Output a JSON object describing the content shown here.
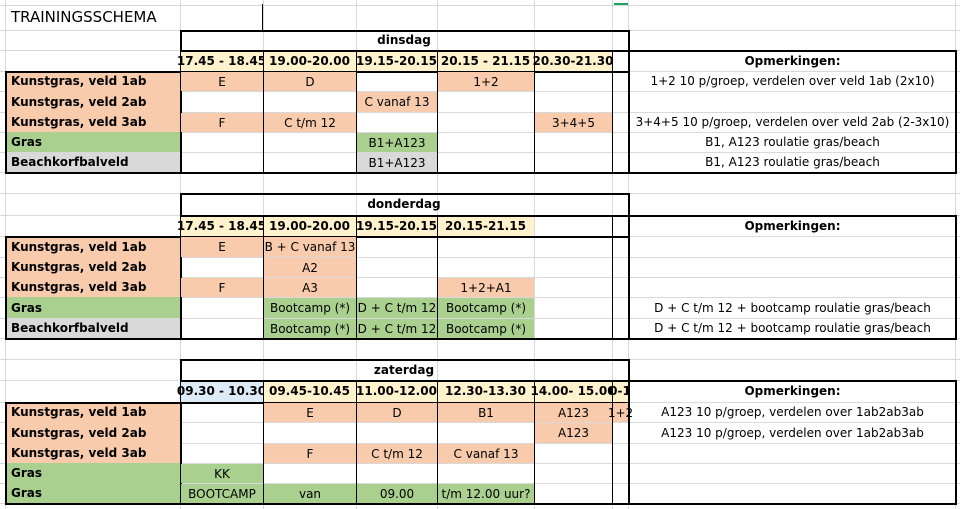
{
  "title": "TRAININGSSCHEMA",
  "colors": {
    "salmon": "#f8cbad",
    "green": "#a9d08e",
    "grey": "#d9d9d9",
    "cream": "#fff2cc",
    "slot_blue": "#ddebf7",
    "grid": "#d9d9d9",
    "selection": "#21a366"
  },
  "sections": [
    {
      "day": "dinsdag",
      "remarks_header": "Opmerkingen:",
      "times": [
        "17.45 - 18.45",
        "19.00-20.00",
        "19.15-20.15",
        "20.15 - 21.15",
        "20.30-21.30"
      ],
      "rows": [
        {
          "label": "Kunstgras, veld 1ab",
          "color": "salmon",
          "cells": [
            "E",
            "D",
            "",
            "1+2",
            ""
          ],
          "remark": "1+2 10 p/groep, verdelen over veld 1ab (2x10)"
        },
        {
          "label": "Kunstgras, veld 2ab",
          "color": "salmon",
          "cells": [
            "",
            "",
            "C vanaf 13",
            "",
            ""
          ],
          "remark": ""
        },
        {
          "label": "Kunstgras, veld 3ab",
          "color": "salmon",
          "cells": [
            "F",
            "C t/m 12",
            "",
            "",
            "3+4+5"
          ],
          "remark": "3+4+5 10 p/groep, verdelen over veld 2ab (2-3x10)"
        },
        {
          "label": "Gras",
          "color": "green",
          "cells": [
            "",
            "",
            "B1+A123",
            "",
            ""
          ],
          "remark": "B1, A123 roulatie gras/beach"
        },
        {
          "label": "Beachkorfbalveld",
          "color": "grey",
          "cells": [
            "",
            "",
            "B1+A123",
            "",
            ""
          ],
          "remark": "B1, A123 roulatie gras/beach"
        }
      ]
    },
    {
      "day": "donderdag",
      "remarks_header": "Opmerkingen:",
      "times": [
        "17.45 - 18.45",
        "19.00-20.00",
        "19.15-20.15",
        "20.15-21.15"
      ],
      "rows": [
        {
          "label": "Kunstgras, veld 1ab",
          "color": "salmon",
          "cells": [
            "E",
            "B + C vanaf 13",
            "",
            ""
          ],
          "remark": ""
        },
        {
          "label": "Kunstgras, veld 2ab",
          "color": "salmon",
          "cells": [
            "",
            "A2",
            "",
            ""
          ],
          "remark": ""
        },
        {
          "label": "Kunstgras, veld 3ab",
          "color": "salmon",
          "cells": [
            "F",
            "A3",
            "",
            "1+2+A1"
          ],
          "remark": ""
        },
        {
          "label": "Gras",
          "color": "green",
          "cells": [
            "",
            "Bootcamp (*)",
            "D + C t/m 12",
            "Bootcamp (*)"
          ],
          "remark": "D + C t/m 12 + bootcamp roulatie gras/beach"
        },
        {
          "label": "Beachkorfbalveld",
          "color": "grey",
          "cells": [
            "",
            "Bootcamp (*)",
            "D + C t/m 12",
            "Bootcamp (*)"
          ],
          "remark": "D + C t/m 12 + bootcamp roulatie gras/beach"
        }
      ]
    },
    {
      "day": "zaterdag",
      "remarks_header": "Opmerkingen:",
      "times": [
        "09.30 - 10.30",
        "09.45-10.45",
        "11.00-12.00",
        "12.30-13.30",
        "14.00- 15.00",
        "0-1"
      ],
      "rows": [
        {
          "label": "Kunstgras, veld 1ab",
          "color": "salmon",
          "cells": [
            "",
            "E",
            "D",
            "B1",
            "A123",
            "1+2"
          ],
          "remark": "A123 10 p/groep, verdelen over 1ab2ab3ab"
        },
        {
          "label": "Kunstgras, veld 2ab",
          "color": "salmon",
          "cells": [
            "",
            "",
            "",
            "",
            "A123",
            ""
          ],
          "remark": "A123 10 p/groep, verdelen over 1ab2ab3ab"
        },
        {
          "label": "Kunstgras, veld 3ab",
          "color": "salmon",
          "cells": [
            "",
            "F",
            "C t/m 12",
            "C vanaf 13",
            "",
            ""
          ],
          "remark": ""
        },
        {
          "label": "Gras",
          "color": "green",
          "cells": [
            "KK",
            "",
            "",
            "",
            "",
            ""
          ],
          "remark": ""
        },
        {
          "label": "Gras",
          "color": "green",
          "cells": [
            "BOOTCAMP",
            "van",
            "09.00",
            "t/m 12.00 uur?",
            "",
            ""
          ],
          "remark": ""
        }
      ]
    }
  ]
}
